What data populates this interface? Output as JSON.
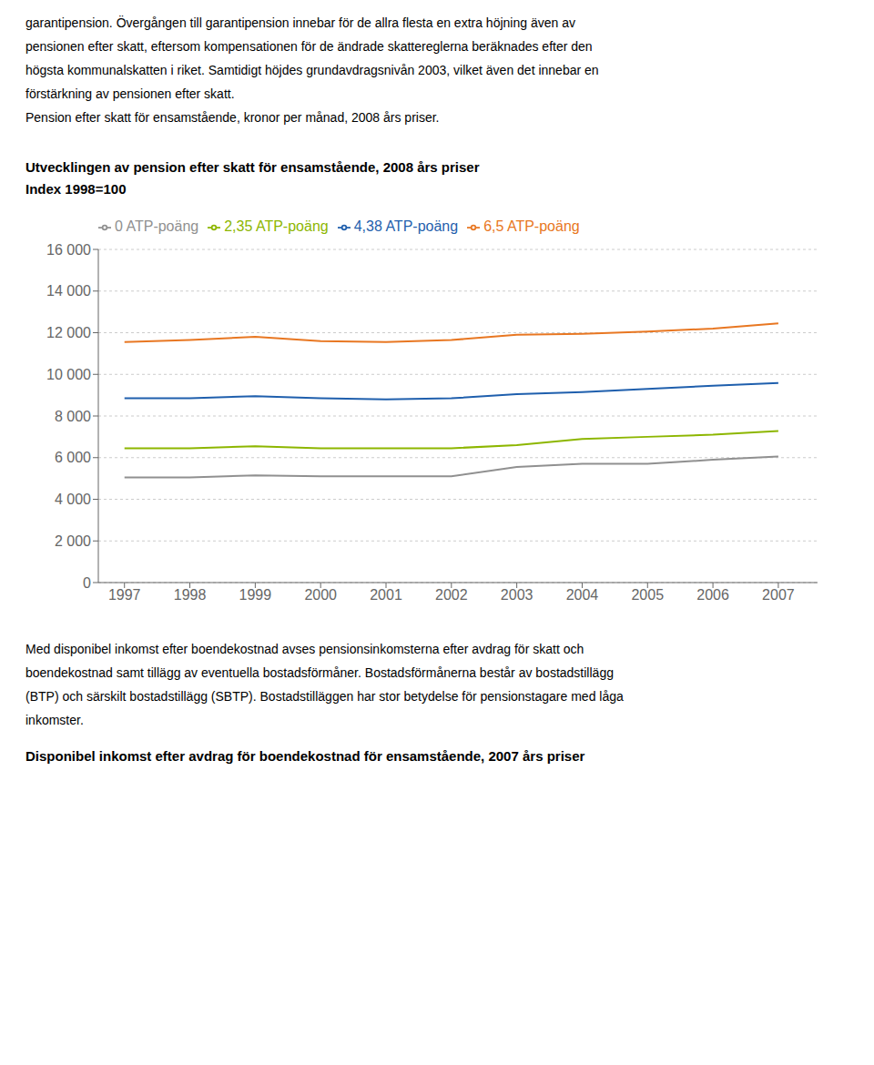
{
  "chart_data": {
    "type": "line",
    "title": "Utvecklingen av pension efter skatt för ensamstående, 2008 års priser",
    "subtitle": "Index 1998=100",
    "annotations": [
      [
        "garantipension. Övergången till garantipension innebar för de allra flesta en extra höjning även av",
        "pensionen efter skatt, eftersom kompensationen för de ändrade skattereglerna beräknades efter den",
        "högsta kommunalskatten i riket. Samtidigt höjdes grundavdragsnivån 2003, vilket även det innebar en",
        "förstärkning av pensionen efter skatt.",
        "Pension efter skatt för ensamstående, kronor per månad, 2008 års priser."
      ],
      [
        "Med disponibel inkomst efter boendekostnad avses pensionsinkomsterna efter avdrag för skatt och",
        "boendekostnad samt tillägg av eventuella bostadsförmåner. Bostadsförmånerna består av bostadstillägg",
        "(BTP) och särskilt bostadstillägg (SBTP). Bostadstilläggen har stor betydelse för pensionstagare med låga",
        "inkomster.",
        "Disponibel inkomst efter avdrag för boendekostnad för ensamstående, 2007 års priser"
      ]
    ],
    "x": [
      1997,
      1998,
      1999,
      2000,
      2001,
      2002,
      2003,
      2004,
      2005,
      2006,
      2007
    ],
    "xlim": [
      1996.6,
      2007.6
    ],
    "xticks": [
      1997,
      1998,
      1999,
      2000,
      2001,
      2002,
      2003,
      2004,
      2005,
      2006,
      2007
    ],
    "series": [
      {
        "name": "6,5 ATP-poäng",
        "color": "#E87722",
        "values": [
          11550,
          11650,
          11800,
          11600,
          11550,
          11650,
          11900,
          11950,
          12050,
          12200,
          12450
        ]
      },
      {
        "name": "4,38 ATP-poäng",
        "color": "#1F5FAD",
        "values": [
          8850,
          8850,
          8950,
          8850,
          8800,
          8850,
          9050,
          9150,
          9300,
          9450,
          9580
        ]
      },
      {
        "name": "2,35 ATP-poäng",
        "color": "#8DB600",
        "values": [
          6450,
          6450,
          6550,
          6450,
          6450,
          6450,
          6600,
          6900,
          7000,
          7100,
          7280
        ]
      },
      {
        "name": "0 ATP-poäng",
        "color": "#909090",
        "values": [
          5050,
          5050,
          5150,
          5100,
          5100,
          5100,
          5550,
          5700,
          5700,
          5900,
          6050
        ]
      }
    ],
    "ylim": [
      0,
      16000
    ],
    "yticks": [
      0,
      {
        "value": 2000,
        "label": "2 000"
      },
      {
        "value": 4000,
        "label": "4 000"
      },
      {
        "value": 6000,
        "label": "6 000"
      },
      {
        "value": 8000,
        "label": "8 000"
      },
      {
        "value": 10000,
        "label": "10 000"
      },
      {
        "value": 12000,
        "label": "12 000"
      },
      {
        "value": 14000,
        "label": "14 000"
      },
      {
        "value": 16000,
        "label": "16 000"
      }
    ],
    "grid": true,
    "legend": "top"
  }
}
